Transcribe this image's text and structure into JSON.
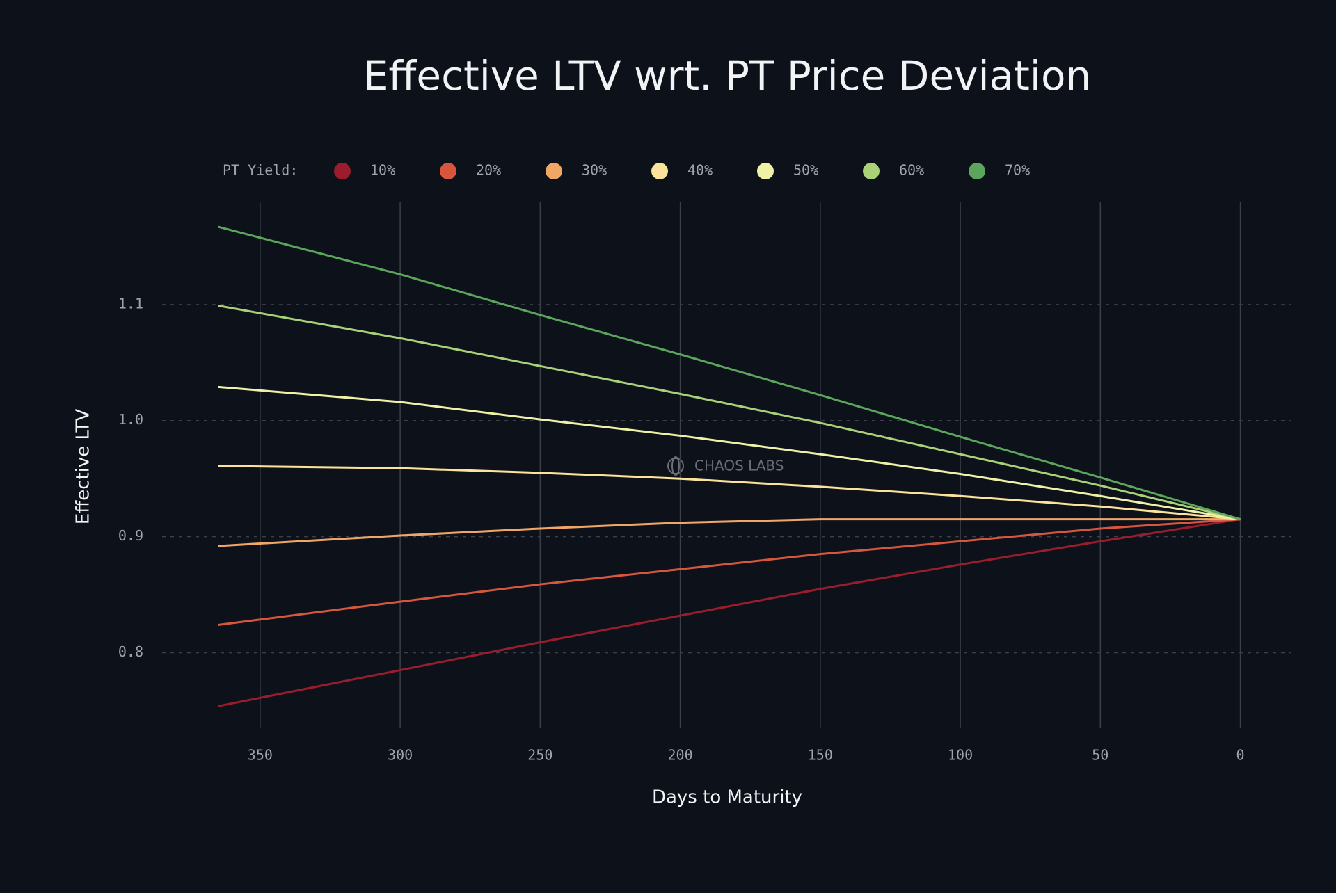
{
  "chart_data": {
    "type": "line",
    "title": "Effective LTV wrt. PT Price Deviation",
    "x_label": "Days to Maturity",
    "y_label": "Effective LTV",
    "legend_title": "PT Yield:",
    "watermark": "CHAOS LABS",
    "legend": "top",
    "grid": true,
    "x": [
      365,
      300,
      250,
      200,
      150,
      100,
      50,
      0
    ],
    "xlim": [
      385,
      -18
    ],
    "xticks": [
      350,
      300,
      250,
      200,
      150,
      100,
      50,
      0
    ],
    "ylim": [
      0.735,
      1.188
    ],
    "yticks": [
      0.8,
      0.9,
      {
        "value": 1,
        "label": "1.0"
      },
      1.1
    ],
    "series": [
      {
        "name": "10%",
        "color": "#9b1c2c",
        "values": [
          0.754,
          0.785,
          0.809,
          0.832,
          0.855,
          0.876,
          0.896,
          0.915
        ]
      },
      {
        "name": "20%",
        "color": "#d9563e",
        "values": [
          0.824,
          0.844,
          0.859,
          0.872,
          0.885,
          0.896,
          0.907,
          0.915
        ]
      },
      {
        "name": "30%",
        "color": "#f0a766",
        "values": [
          0.892,
          0.901,
          0.907,
          0.912,
          0.915,
          0.915,
          0.915,
          0.915
        ]
      },
      {
        "name": "40%",
        "color": "#fbe39b",
        "values": [
          0.961,
          0.959,
          0.955,
          0.95,
          0.943,
          0.935,
          0.926,
          0.915
        ]
      },
      {
        "name": "50%",
        "color": "#eef2a6",
        "values": [
          1.029,
          1.016,
          1.001,
          0.987,
          0.971,
          0.954,
          0.935,
          0.915
        ]
      },
      {
        "name": "60%",
        "color": "#a8d178",
        "values": [
          1.099,
          1.071,
          1.047,
          1.023,
          0.998,
          0.971,
          0.944,
          0.915
        ]
      },
      {
        "name": "70%",
        "color": "#5ba55c",
        "values": [
          1.167,
          1.126,
          1.091,
          1.057,
          1.022,
          0.986,
          0.951,
          0.915
        ]
      }
    ]
  }
}
